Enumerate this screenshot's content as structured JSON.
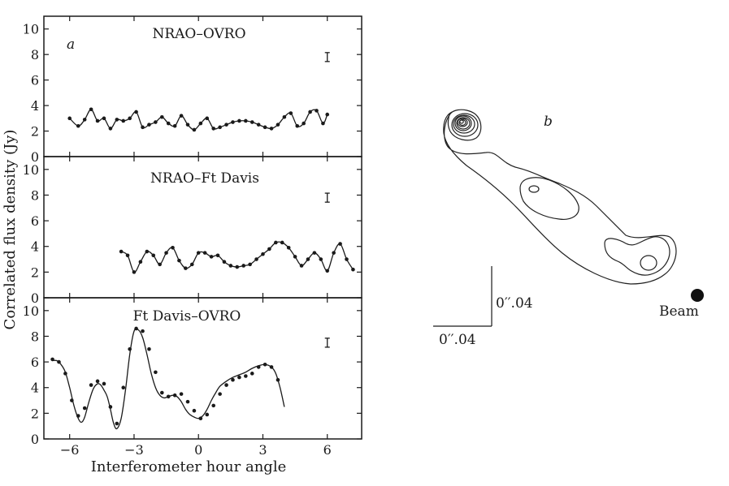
{
  "chart_data": [
    {
      "type": "line",
      "panel_letter": "a",
      "ylabel": "Correlated flux density (Jy)",
      "xlabel": "Interferometer hour angle",
      "xlim": [
        -7.2,
        7.6
      ],
      "x_ticks": [
        -6,
        -3,
        0,
        3,
        6
      ],
      "ylim": [
        0,
        11
      ],
      "y_ticks": [
        0,
        2,
        4,
        6,
        8,
        10
      ],
      "subplots": [
        {
          "title": "NRAO–OVRO",
          "error_bar": {
            "x": 6,
            "y": 7.8,
            "half": 0.35
          },
          "series": [
            {
              "x": [
                -6.0,
                -5.6,
                -5.3,
                -5.0,
                -4.7,
                -4.4,
                -4.1,
                -3.8,
                -3.5,
                -3.2,
                -2.9,
                -2.6,
                -2.3,
                -2.0,
                -1.7,
                -1.4,
                -1.1,
                -0.8,
                -0.5,
                -0.2,
                0.1,
                0.4,
                0.7,
                1.0,
                1.3,
                1.6,
                1.9,
                2.2,
                2.5,
                2.8,
                3.1,
                3.4,
                3.7,
                4.0,
                4.3,
                4.6,
                4.9,
                5.2,
                5.5,
                5.8,
                6.0
              ],
              "y": [
                3.0,
                2.4,
                2.9,
                3.7,
                2.8,
                3.0,
                2.2,
                2.9,
                2.8,
                3.0,
                3.5,
                2.3,
                2.5,
                2.7,
                3.1,
                2.6,
                2.4,
                3.2,
                2.5,
                2.1,
                2.6,
                3.0,
                2.2,
                2.3,
                2.5,
                2.7,
                2.8,
                2.8,
                2.7,
                2.5,
                2.3,
                2.2,
                2.5,
                3.1,
                3.4,
                2.4,
                2.6,
                3.5,
                3.6,
                2.6,
                3.3
              ]
            }
          ]
        },
        {
          "title": "NRAO–Ft Davis",
          "error_bar": {
            "x": 6,
            "y": 7.8,
            "half": 0.35
          },
          "series": [
            {
              "x": [
                -3.6,
                -3.3,
                -3.0,
                -2.7,
                -2.4,
                -2.1,
                -1.8,
                -1.5,
                -1.2,
                -0.9,
                -0.6,
                -0.3,
                0.0,
                0.3,
                0.6,
                0.9,
                1.2,
                1.5,
                1.8,
                2.1,
                2.4,
                2.7,
                3.0,
                3.3,
                3.6,
                3.9,
                4.2,
                4.5,
                4.8,
                5.1,
                5.4,
                5.7,
                6.0,
                6.3,
                6.6,
                6.9,
                7.2
              ],
              "y": [
                3.6,
                3.3,
                2.0,
                2.8,
                3.6,
                3.3,
                2.6,
                3.5,
                3.9,
                2.9,
                2.3,
                2.6,
                3.5,
                3.5,
                3.2,
                3.3,
                2.8,
                2.5,
                2.4,
                2.5,
                2.6,
                3.0,
                3.4,
                3.8,
                4.3,
                4.3,
                3.9,
                3.2,
                2.5,
                3.0,
                3.5,
                3.0,
                2.1,
                3.5,
                4.2,
                3.0,
                2.2
              ]
            }
          ]
        },
        {
          "title": "Ft Davis–OVRO",
          "error_bar": {
            "x": 6,
            "y": 7.5,
            "half": 0.35
          },
          "series": [
            {
              "x": [
                -6.8,
                -6.5,
                -6.2,
                -5.9,
                -5.6,
                -5.3,
                -5.0,
                -4.7,
                -4.4,
                -4.1,
                -3.8,
                -3.5,
                -3.2,
                -2.9,
                -2.6,
                -2.3,
                -2.0,
                -1.7,
                -1.4,
                -1.1,
                -0.8,
                -0.5,
                -0.2,
                0.1,
                0.4,
                0.7,
                1.0,
                1.3,
                1.6,
                1.9,
                2.2,
                2.5,
                2.8,
                3.1,
                3.4,
                3.7
              ],
              "y": [
                6.2,
                6.0,
                5.1,
                3.0,
                1.8,
                2.4,
                4.2,
                4.5,
                4.3,
                2.5,
                1.2,
                4.0,
                7.0,
                8.6,
                8.4,
                7.0,
                5.2,
                3.6,
                3.3,
                3.4,
                3.5,
                2.9,
                2.2,
                1.6,
                1.9,
                2.6,
                3.5,
                4.2,
                4.6,
                4.8,
                4.9,
                5.1,
                5.6,
                5.8,
                5.6,
                4.6
              ]
            }
          ],
          "curve": {
            "x": [
              -6.8,
              -6.6,
              -6.4,
              -6.2,
              -6.0,
              -5.8,
              -5.6,
              -5.45,
              -5.3,
              -5.1,
              -4.9,
              -4.7,
              -4.55,
              -4.4,
              -4.25,
              -4.1,
              -3.95,
              -3.8,
              -3.6,
              -3.4,
              -3.2,
              -3.0,
              -2.8,
              -2.6,
              -2.4,
              -2.2,
              -2.0,
              -1.8,
              -1.6,
              -1.4,
              -1.2,
              -1.0,
              -0.8,
              -0.6,
              -0.4,
              -0.2,
              0.0,
              0.2,
              0.4,
              0.6,
              0.8,
              1.0,
              1.3,
              1.6,
              1.9,
              2.2,
              2.5,
              2.8,
              3.1,
              3.4,
              3.6,
              3.8,
              4.0
            ],
            "y": [
              6.1,
              6.1,
              5.8,
              5.2,
              4.0,
              2.6,
              1.6,
              1.3,
              1.7,
              2.9,
              3.9,
              4.3,
              4.2,
              3.8,
              3.3,
              2.3,
              1.2,
              0.8,
              1.6,
              3.8,
              6.6,
              8.4,
              8.5,
              7.9,
              6.6,
              5.1,
              4.0,
              3.4,
              3.2,
              3.3,
              3.4,
              3.3,
              2.9,
              2.3,
              1.9,
              1.7,
              1.6,
              1.8,
              2.3,
              3.0,
              3.6,
              4.1,
              4.5,
              4.8,
              5.0,
              5.2,
              5.5,
              5.7,
              5.8,
              5.6,
              5.1,
              4.0,
              2.5
            ]
          }
        }
      ]
    },
    {
      "type": "contour-map",
      "panel_letter": "b",
      "scale_x_label": "0′′.04",
      "scale_y_label": "0′′.04",
      "beam_label": "Beam",
      "beam_color": "#111111"
    }
  ]
}
